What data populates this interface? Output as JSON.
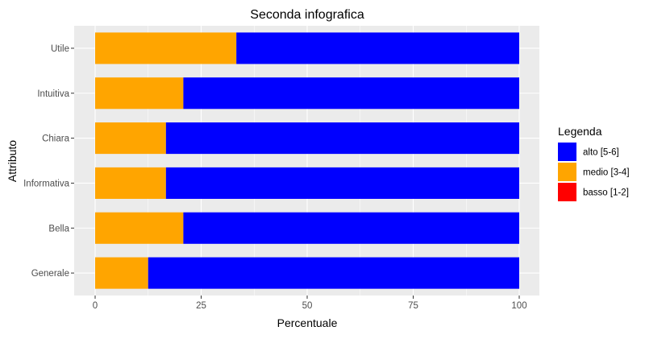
{
  "chart_data": {
    "type": "bar",
    "orientation": "horizontal",
    "stacked": true,
    "title": "Seconda infografica",
    "xlabel": "Percentuale",
    "ylabel": "Attributo",
    "xlim": [
      0,
      100
    ],
    "xticks": [
      0,
      25,
      50,
      75,
      100
    ],
    "xtick_labels": [
      "0",
      "25",
      "50",
      "75",
      "100"
    ],
    "categories": [
      "Utile",
      "Intuitiva",
      "Chiara",
      "Informativa",
      "Bella",
      "Generale"
    ],
    "series": [
      {
        "name": "medio [3-4]",
        "color": "#FFA500",
        "values": [
          33.3,
          20.8,
          16.7,
          16.7,
          20.8,
          12.5
        ]
      },
      {
        "name": "alto [5-6]",
        "color": "#0000FF",
        "values": [
          66.7,
          79.2,
          83.3,
          83.3,
          79.2,
          87.5
        ]
      }
    ],
    "grid": true,
    "legend": {
      "title": "Legenda",
      "position": "right",
      "entries": [
        {
          "label": "alto [5-6]",
          "color": "#0000FF"
        },
        {
          "label": "medio [3-4]",
          "color": "#FFA500"
        },
        {
          "label": "basso [1-2]",
          "color": "#FF0000"
        }
      ]
    }
  }
}
